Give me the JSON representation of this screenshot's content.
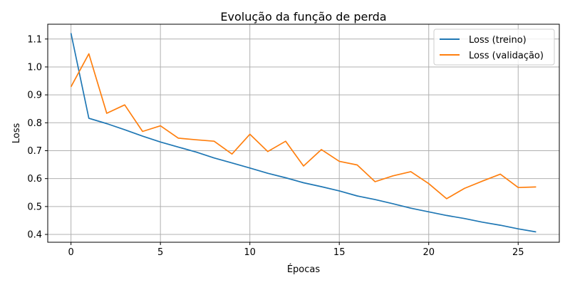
{
  "chart_data": {
    "type": "line",
    "title": "Evolução da função de perda",
    "xlabel": "Épocas",
    "ylabel": "Loss",
    "xlim": [
      -1.3,
      27.3
    ],
    "ylim": [
      0.372,
      1.153
    ],
    "xticks": [
      0,
      5,
      10,
      15,
      20,
      25
    ],
    "yticks": [
      0.4,
      0.5,
      0.6,
      0.7,
      0.8,
      0.9,
      1.0,
      1.1
    ],
    "ytick_labels": [
      "0.4",
      "0.5",
      "0.6",
      "0.7",
      "0.8",
      "0.9",
      "1.0",
      "1.1"
    ],
    "grid": true,
    "legend_position": "top-right",
    "x": [
      0,
      1,
      2,
      3,
      4,
      5,
      6,
      7,
      8,
      9,
      10,
      11,
      12,
      13,
      14,
      15,
      16,
      17,
      18,
      19,
      20,
      21,
      22,
      23,
      24,
      25,
      26
    ],
    "series": [
      {
        "name": "Loss (treino)",
        "color": "#1f77b4",
        "values": [
          1.121,
          0.816,
          0.797,
          0.775,
          0.752,
          0.731,
          0.713,
          0.695,
          0.674,
          0.656,
          0.638,
          0.619,
          0.603,
          0.585,
          0.571,
          0.556,
          0.538,
          0.525,
          0.51,
          0.494,
          0.481,
          0.468,
          0.457,
          0.444,
          0.433,
          0.42,
          0.409
        ]
      },
      {
        "name": "Loss (validação)",
        "color": "#ff7f0e",
        "values": [
          0.929,
          1.047,
          0.834,
          0.864,
          0.769,
          0.789,
          0.745,
          0.739,
          0.734,
          0.688,
          0.759,
          0.697,
          0.734,
          0.645,
          0.704,
          0.662,
          0.649,
          0.589,
          0.61,
          0.625,
          0.582,
          0.528,
          0.565,
          0.591,
          0.616,
          0.568,
          0.57
        ]
      }
    ]
  }
}
